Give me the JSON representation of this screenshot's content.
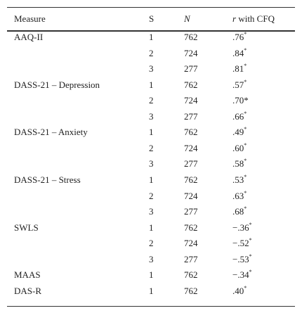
{
  "table": {
    "header": [
      "Measure",
      "S",
      "N",
      {
        "italic": "r",
        "text": "with CFQ"
      }
    ],
    "rows": [
      {
        "measure": "AAQ-II",
        "s": 1,
        "n": 762,
        "r": ".76",
        "sup": "*"
      },
      {
        "s": 2,
        "n": 724,
        "r": ".84",
        "sup": "*"
      },
      {
        "s": 3,
        "n": 277,
        "r": ".81",
        "sup": "*"
      },
      {
        "measure": "DASS-21 – Depression",
        "s": 1,
        "n": 762,
        "r": ".57",
        "sup": "*"
      },
      {
        "s": 2,
        "n": 724,
        "r": ".70*"
      },
      {
        "s": 3,
        "n": 277,
        "r": ".66",
        "sup": "*"
      },
      {
        "measure": "DASS-21 – Anxiety",
        "s": 1,
        "n": 762,
        "r": ".49",
        "sup": "*"
      },
      {
        "s": 2,
        "n": 724,
        "r": ".60",
        "sup": "*"
      },
      {
        "s": 3,
        "n": 277,
        "r": ".58",
        "sup": "*"
      },
      {
        "measure": "DASS-21 – Stress",
        "s": 1,
        "n": 762,
        "r": ".53",
        "sup": "*"
      },
      {
        "s": 2,
        "n": 724,
        "r": ".63",
        "sup": "*"
      },
      {
        "s": 3,
        "n": 277,
        "r": ".68",
        "sup": "*"
      },
      {
        "measure": "SWLS",
        "s": 1,
        "n": 762,
        "r": "−.36",
        "sup": "*"
      },
      {
        "s": 2,
        "n": 724,
        "r": "−.52",
        "sup": "*"
      },
      {
        "s": 3,
        "n": 277,
        "r": "−.53",
        "sup": "*"
      },
      {
        "measure": "MAAS",
        "s": 1,
        "n": 762,
        "r": "−.34",
        "sup": "*"
      },
      {
        "measure": "DAS-R",
        "s": 1,
        "n": 762,
        "r": ".40",
        "sup": "*"
      }
    ]
  }
}
